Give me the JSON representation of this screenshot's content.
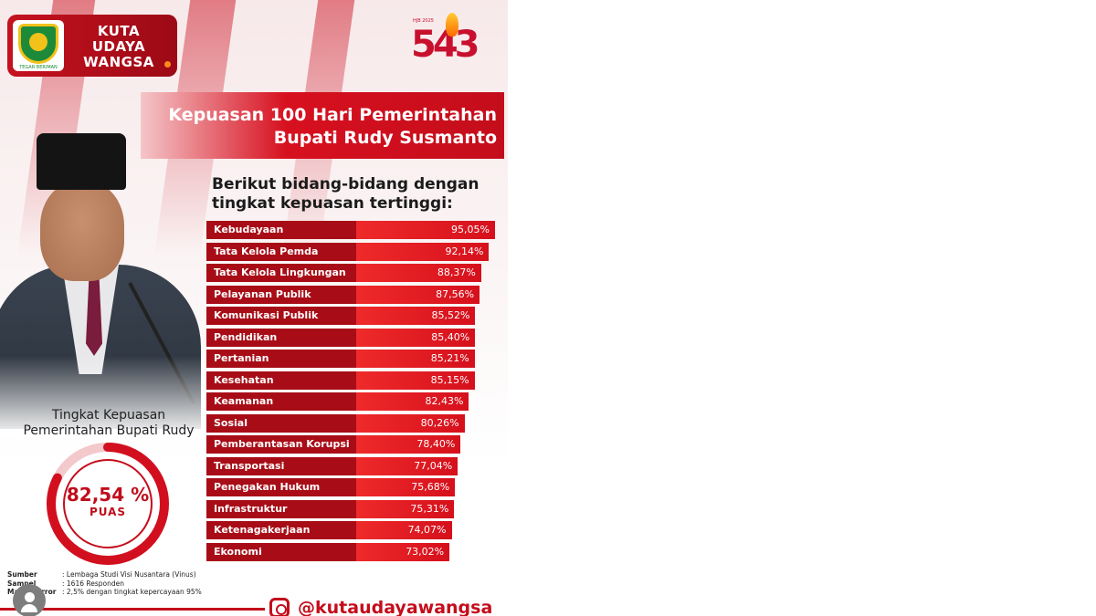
{
  "brand": {
    "name_line1": "KUTA",
    "name_line2": "UDAYA",
    "name_line3": "WANGSA",
    "motto": "TEGAR BERIMAN"
  },
  "anniversary": {
    "number": "543",
    "small_text": "HJB 2025"
  },
  "header": {
    "title_line1": "Kepuasan 100 Hari Pemerintahan",
    "title_line2": "Bupati Rudy Susmanto"
  },
  "subtitle": {
    "line1": "Berikut bidang-bidang dengan",
    "line2": "tingkat kepuasan tertinggi:"
  },
  "overall": {
    "label_line1": "Tingkat Kepuasan",
    "label_line2": "Pemerintahan Bupati Rudy",
    "value": 82.54,
    "value_text": "82,54 %",
    "unit": "PUAS"
  },
  "chart_data": {
    "type": "bar",
    "orientation": "horizontal",
    "categories": [
      "Kebudayaan",
      "Tata Kelola Pemda",
      "Tata Kelola Lingkungan",
      "Pelayanan Publik",
      "Komunikasi Publik",
      "Pendidikan",
      "Pertanian",
      "Kesehatan",
      "Keamanan",
      "Sosial",
      "Pemberantasan Korupsi",
      "Transportasi",
      "Penegakan Hukum",
      "Infrastruktur",
      "Ketenagakerjaan",
      "Ekonomi"
    ],
    "values": [
      95.05,
      92.14,
      88.37,
      87.56,
      85.52,
      85.4,
      85.21,
      85.15,
      82.43,
      80.26,
      78.4,
      77.04,
      75.68,
      75.31,
      74.07,
      73.02
    ],
    "value_labels": [
      "95,05%",
      "92,14%",
      "88,37%",
      "87,56%",
      "85,52%",
      "85,40%",
      "85,21%",
      "85,15%",
      "82,43%",
      "80,26%",
      "78,40%",
      "77,04%",
      "75,68%",
      "75,31%",
      "74,07%",
      "73,02%"
    ],
    "title": "",
    "xlabel": "",
    "ylabel": "",
    "grid": false,
    "colors": {
      "label_bg": "#a80d17",
      "bar": "#e01e24"
    }
  },
  "sources": [
    {
      "key": "Sumber",
      "value": ": Lembaga Studi Visi Nusantara (Vinus)"
    },
    {
      "key": "Sampel",
      "value": ": 1616 Responden"
    },
    {
      "key": "Margin Error",
      "value": ": 2,5% dengan tingkat kepercayaan 95%"
    }
  ],
  "social": {
    "handle": "@kutaudayawangsa",
    "icon": "instagram-icon"
  }
}
